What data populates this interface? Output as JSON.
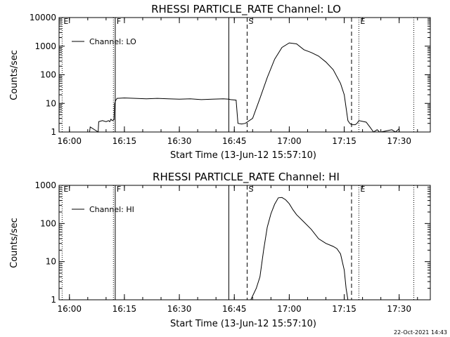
{
  "footer": {
    "timestamp": "22-Oct-2021 14:43"
  },
  "chart_data": [
    {
      "type": "line",
      "title": "RHESSI PARTICLE_RATE Channel: LO",
      "xlabel": "Start Time (13-Jun-12 15:57:10)",
      "ylabel": "Counts/sec",
      "y_scale": "log",
      "ylim": [
        1,
        10000
      ],
      "xlim": [
        "15:57:10",
        "17:38:30"
      ],
      "x_ticks": [
        "16:00",
        "16:15",
        "16:30",
        "16:45",
        "17:00",
        "17:15",
        "17:30"
      ],
      "y_ticks": [
        "1",
        "10",
        "100",
        "1000",
        "10000"
      ],
      "legend": {
        "position": "top-left",
        "entries": [
          "Channel: LO"
        ]
      },
      "markers": [
        {
          "time": "15:58:00",
          "style": "dotted",
          "label": "E"
        },
        {
          "time": "16:12:00",
          "style": "dotted",
          "label": ""
        },
        {
          "time": "16:12:30",
          "style": "solid",
          "label": "F"
        },
        {
          "time": "16:43:30",
          "style": "solid",
          "label": ""
        },
        {
          "time": "16:48:30",
          "style": "dashed",
          "label": "S"
        },
        {
          "time": "17:17:00",
          "style": "dashed",
          "label": ""
        },
        {
          "time": "17:19:00",
          "style": "dotted",
          "label": "E"
        },
        {
          "time": "17:34:00",
          "style": "dotted",
          "label": ""
        }
      ],
      "series": [
        {
          "name": "Channel: LO",
          "x": [
            "16:05:30",
            "16:05:40",
            "16:07:50",
            "16:08:00",
            "16:09:00",
            "16:10:00",
            "16:10:40",
            "16:11:00",
            "16:11:20",
            "16:11:40",
            "16:12:10",
            "16:12:20",
            "16:12:40",
            "16:13:00",
            "16:15:00",
            "16:18:00",
            "16:21:00",
            "16:24:00",
            "16:27:00",
            "16:30:00",
            "16:33:00",
            "16:36:00",
            "16:39:00",
            "16:42:00",
            "16:43:30",
            "16:44:00",
            "16:45:30",
            "16:46:00",
            "16:47:00",
            "16:48:00",
            "16:50:00",
            "16:52:00",
            "16:54:00",
            "16:56:00",
            "16:58:00",
            "17:00:00",
            "17:02:00",
            "17:04:00",
            "17:06:00",
            "17:08:00",
            "17:10:00",
            "17:12:00",
            "17:14:00",
            "17:15:00",
            "17:16:00",
            "17:16:30",
            "17:17:00",
            "17:18:00",
            "17:18:30",
            "17:19:00",
            "17:21:00",
            "17:22:00",
            "17:23:00",
            "17:24:00",
            "17:24:40",
            "17:25:00",
            "17:28:00",
            "17:29:00",
            "17:30:00"
          ],
          "y": [
            1,
            1.5,
            1,
            2.3,
            2.5,
            2.3,
            2.5,
            2.3,
            2.8,
            2.5,
            2.7,
            10,
            13,
            15,
            15.5,
            15,
            14.5,
            15,
            14.5,
            14,
            14.5,
            13.5,
            14,
            14.5,
            14,
            13.5,
            13,
            2,
            1.9,
            2,
            3,
            15,
            80,
            350,
            900,
            1300,
            1200,
            750,
            600,
            450,
            280,
            150,
            50,
            20,
            2.5,
            2,
            1.8,
            1.8,
            2,
            2.5,
            2.2,
            1.5,
            1,
            1.2,
            1,
            1,
            1.2,
            1,
            1.3
          ]
        }
      ]
    },
    {
      "type": "line",
      "title": "RHESSI PARTICLE_RATE Channel: HI",
      "xlabel": "Start Time (13-Jun-12 15:57:10)",
      "ylabel": "Counts/sec",
      "y_scale": "log",
      "ylim": [
        1,
        1000
      ],
      "xlim": [
        "15:57:10",
        "17:38:30"
      ],
      "x_ticks": [
        "16:00",
        "16:15",
        "16:30",
        "16:45",
        "17:00",
        "17:15",
        "17:30"
      ],
      "y_ticks": [
        "1",
        "10",
        "100",
        "1000"
      ],
      "legend": {
        "position": "top-left",
        "entries": [
          "Channel: HI"
        ]
      },
      "markers": [
        {
          "time": "15:58:00",
          "style": "dotted",
          "label": "E"
        },
        {
          "time": "16:12:00",
          "style": "dotted",
          "label": ""
        },
        {
          "time": "16:12:30",
          "style": "solid",
          "label": "F"
        },
        {
          "time": "16:43:30",
          "style": "solid",
          "label": ""
        },
        {
          "time": "16:48:30",
          "style": "dashed",
          "label": "S"
        },
        {
          "time": "17:17:00",
          "style": "dashed",
          "label": ""
        },
        {
          "time": "17:19:00",
          "style": "dotted",
          "label": "E"
        },
        {
          "time": "17:34:00",
          "style": "dotted",
          "label": ""
        }
      ],
      "series": [
        {
          "name": "Channel: HI",
          "x": [
            "16:49:30",
            "16:51:00",
            "16:52:00",
            "16:53:00",
            "16:54:00",
            "16:55:00",
            "16:56:00",
            "16:57:00",
            "16:58:00",
            "16:59:00",
            "17:00:00",
            "17:01:00",
            "17:02:00",
            "17:04:00",
            "17:06:00",
            "17:08:00",
            "17:10:00",
            "17:12:00",
            "17:13:00",
            "17:14:00",
            "17:15:00",
            "17:15:30",
            "17:16:00"
          ],
          "y": [
            1,
            2,
            4,
            20,
            80,
            180,
            320,
            470,
            480,
            420,
            330,
            230,
            170,
            110,
            70,
            40,
            30,
            25,
            22,
            16,
            6,
            2,
            1
          ]
        }
      ]
    }
  ]
}
